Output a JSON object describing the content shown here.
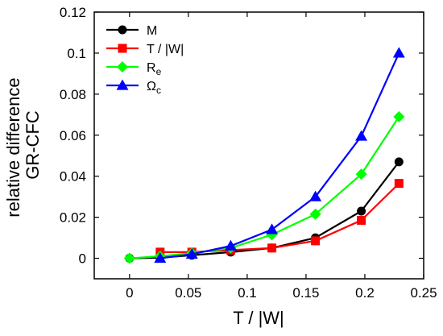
{
  "chart_data": {
    "type": "line",
    "xlabel": "T / |W|",
    "ylabel": [
      "relative difference",
      "GR-CFC"
    ],
    "xlim": [
      -0.03,
      0.25
    ],
    "ylim": [
      -0.01,
      0.12
    ],
    "xticks": [
      "0",
      "0.05",
      "0.1",
      "0.15",
      "0.2",
      "0.25"
    ],
    "yticks": [
      "0",
      "0.02",
      "0.04",
      "0.06",
      "0.08",
      "0.1",
      "0.12"
    ],
    "legend_position": "top-left",
    "grid": false,
    "series": [
      {
        "name": "M",
        "legend_base": "M",
        "legend_sub": "",
        "color": "#000000",
        "marker": "circle",
        "x": [
          0,
          0.026,
          0.053,
          0.086,
          0.121,
          0.158,
          0.197,
          0.229
        ],
        "y": [
          0,
          0.0003,
          0.0015,
          0.003,
          0.005,
          0.01,
          0.023,
          0.047
        ]
      },
      {
        "name": "T / |W|",
        "legend_base": "T / |W|",
        "legend_sub": "",
        "color": "#ff0000",
        "marker": "square",
        "x": [
          0.026,
          0.053,
          0.086,
          0.121,
          0.158,
          0.197,
          0.229
        ],
        "y": [
          0.003,
          0.003,
          0.004,
          0.005,
          0.0085,
          0.0185,
          0.0365
        ]
      },
      {
        "name": "Re",
        "legend_base": "R",
        "legend_sub": "e",
        "color": "#00ff00",
        "marker": "diamond",
        "x": [
          0,
          0.026,
          0.053,
          0.086,
          0.121,
          0.158,
          0.197,
          0.229
        ],
        "y": [
          0,
          0.001,
          0.0025,
          0.005,
          0.0115,
          0.0215,
          0.041,
          0.069
        ]
      },
      {
        "name": "Ωc",
        "legend_base": "Ω",
        "legend_sub": "c",
        "color": "#0000ff",
        "marker": "triangle",
        "x": [
          0.026,
          0.053,
          0.086,
          0.121,
          0.158,
          0.197,
          0.229
        ],
        "y": [
          0,
          0.002,
          0.006,
          0.014,
          0.03,
          0.0595,
          0.1
        ]
      }
    ]
  }
}
